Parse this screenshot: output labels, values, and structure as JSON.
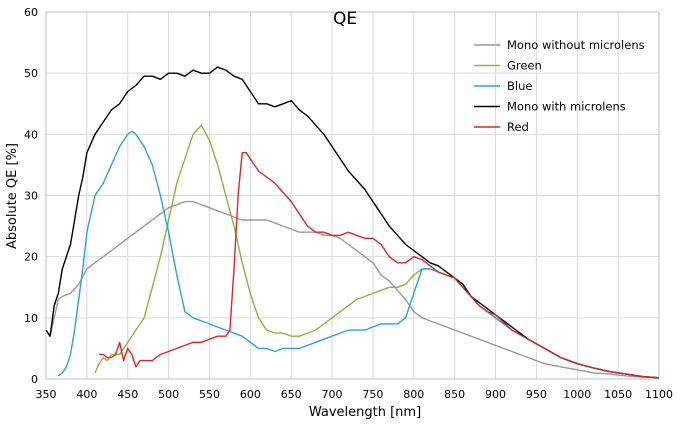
{
  "chart_data": {
    "type": "line",
    "title": "QE",
    "xlabel": "Wavelength [nm]",
    "ylabel": "Absolute QE [%]",
    "xlim": [
      350,
      1100
    ],
    "ylim": [
      0,
      60
    ],
    "xticks": [
      350,
      400,
      450,
      500,
      550,
      600,
      650,
      700,
      750,
      800,
      850,
      900,
      950,
      1000,
      1050,
      1100
    ],
    "yticks": [
      0,
      10,
      20,
      30,
      40,
      50,
      60
    ],
    "grid": true,
    "legend_position": "top-right",
    "legend": [
      "Mono without microlens",
      "Green",
      "Blue",
      "Mono with microlens",
      "Red"
    ],
    "series": [
      {
        "name": "Mono without microlens",
        "color": "#999999",
        "x": [
          350,
          355,
          360,
          365,
          370,
          380,
          390,
          400,
          410,
          420,
          430,
          440,
          450,
          460,
          470,
          480,
          490,
          500,
          510,
          520,
          530,
          540,
          550,
          560,
          570,
          580,
          590,
          600,
          610,
          620,
          630,
          640,
          650,
          660,
          670,
          680,
          690,
          700,
          710,
          720,
          730,
          740,
          750,
          760,
          770,
          780,
          790,
          800,
          810,
          820,
          830,
          840,
          850,
          860,
          870,
          880,
          890,
          900,
          920,
          940,
          960,
          980,
          1000,
          1020,
          1040,
          1060,
          1080,
          1100
        ],
        "y": [
          8,
          7,
          10,
          13,
          13.5,
          14,
          15.5,
          18,
          19,
          20,
          21,
          22,
          23,
          24,
          25,
          26,
          27,
          28,
          28.5,
          29,
          29,
          28.5,
          28,
          27.5,
          27,
          26.5,
          26,
          26,
          26,
          26,
          25.5,
          25,
          24.5,
          24,
          24,
          24,
          23.5,
          23.5,
          23,
          22,
          21,
          20,
          19,
          17,
          16,
          14.5,
          13,
          11,
          10,
          9.5,
          9,
          8.5,
          8,
          7.5,
          7,
          6.5,
          6,
          5.5,
          4.5,
          3.5,
          2.5,
          2,
          1.5,
          1,
          0.8,
          0.5,
          0.3,
          0.2
        ]
      },
      {
        "name": "Green",
        "color": "#8cb33c",
        "x": [
          410,
          415,
          420,
          425,
          430,
          440,
          450,
          460,
          470,
          480,
          490,
          500,
          510,
          520,
          530,
          540,
          550,
          560,
          570,
          580,
          590,
          600,
          610,
          620,
          630,
          640,
          650,
          660,
          670,
          680,
          690,
          700,
          710,
          720,
          730,
          740,
          750,
          760,
          770,
          780,
          790,
          800,
          810,
          820,
          830,
          840,
          850,
          860,
          870,
          880,
          890,
          900,
          920,
          940,
          960,
          980,
          1000,
          1020,
          1040,
          1060,
          1080,
          1100
        ],
        "y": [
          1,
          2.5,
          3.5,
          3,
          4,
          4,
          6,
          8,
          10,
          15,
          20,
          26,
          32,
          36,
          40,
          41.5,
          39,
          35,
          30,
          25,
          19,
          14,
          10,
          8,
          7.5,
          7.5,
          7,
          7,
          7.5,
          8,
          9,
          10,
          11,
          12,
          13,
          13.5,
          14,
          14.5,
          15,
          15,
          15.5,
          17,
          18,
          18,
          17.5,
          17,
          16.5,
          15,
          13.5,
          12,
          11,
          10,
          8,
          6.5,
          5,
          3.5,
          2.5,
          1.8,
          1.2,
          0.8,
          0.4,
          0.2
        ]
      },
      {
        "name": "Blue",
        "color": "#29a3d6",
        "x": [
          365,
          370,
          375,
          380,
          385,
          390,
          395,
          400,
          410,
          420,
          430,
          440,
          450,
          455,
          460,
          470,
          480,
          490,
          500,
          510,
          520,
          530,
          540,
          550,
          560,
          570,
          580,
          590,
          600,
          610,
          620,
          630,
          640,
          650,
          660,
          670,
          680,
          690,
          700,
          710,
          720,
          730,
          740,
          750,
          760,
          770,
          780,
          790,
          800,
          810,
          820,
          830,
          840,
          850,
          860,
          870,
          880,
          890,
          900,
          920,
          940,
          960,
          980,
          1000,
          1020,
          1040,
          1060,
          1080,
          1100
        ],
        "y": [
          0.5,
          1,
          2,
          4,
          8,
          13,
          18,
          24,
          30,
          32,
          35,
          38,
          40,
          40.5,
          40,
          38,
          35,
          30,
          24,
          17,
          11,
          10,
          9.5,
          9,
          8.5,
          8,
          7.5,
          7,
          6,
          5,
          5,
          4.5,
          5,
          5,
          5,
          5.5,
          6,
          6.5,
          7,
          7.5,
          8,
          8,
          8,
          8.5,
          9,
          9,
          9,
          10,
          14,
          18,
          18,
          17.5,
          17,
          16.5,
          15,
          13.5,
          12,
          11,
          10,
          8,
          6.5,
          5,
          3.5,
          2.5,
          1.8,
          1.2,
          0.8,
          0.4,
          0.2
        ]
      },
      {
        "name": "Mono with microlens",
        "color": "#000000",
        "x": [
          350,
          355,
          360,
          365,
          370,
          375,
          380,
          385,
          390,
          395,
          400,
          410,
          420,
          430,
          440,
          450,
          460,
          470,
          480,
          490,
          500,
          510,
          520,
          530,
          540,
          550,
          560,
          570,
          580,
          590,
          600,
          610,
          620,
          630,
          640,
          650,
          660,
          670,
          680,
          690,
          700,
          710,
          720,
          730,
          740,
          750,
          760,
          770,
          780,
          790,
          800,
          810,
          820,
          830,
          840,
          850,
          860,
          870,
          880,
          890,
          900,
          920,
          940,
          960,
          980,
          1000,
          1020,
          1040,
          1060,
          1080,
          1100
        ],
        "y": [
          8,
          7,
          12,
          14,
          18,
          20,
          22,
          26,
          30,
          33,
          37,
          40,
          42,
          44,
          45,
          47,
          48,
          49.5,
          49.5,
          49,
          50,
          50,
          49.5,
          50.5,
          50,
          50,
          51,
          50.5,
          49.5,
          49,
          47,
          45,
          45,
          44.5,
          45,
          45.5,
          44,
          43,
          41.5,
          40,
          38,
          36,
          34,
          32.5,
          31,
          29,
          27,
          25,
          23.5,
          22,
          21,
          20,
          19,
          18.5,
          17.5,
          16.5,
          15.5,
          13.5,
          12.5,
          11.5,
          10.5,
          8.5,
          6.5,
          5,
          3.5,
          2.5,
          1.8,
          1.2,
          0.8,
          0.4,
          0.2
        ]
      },
      {
        "name": "Red",
        "color": "#d42a2a",
        "x": [
          415,
          420,
          425,
          430,
          435,
          440,
          445,
          450,
          455,
          460,
          465,
          470,
          480,
          490,
          500,
          510,
          520,
          530,
          540,
          550,
          560,
          570,
          575,
          580,
          585,
          590,
          595,
          600,
          610,
          620,
          630,
          640,
          650,
          660,
          670,
          680,
          690,
          700,
          710,
          720,
          730,
          740,
          750,
          760,
          770,
          780,
          790,
          800,
          810,
          820,
          830,
          840,
          850,
          860,
          870,
          880,
          890,
          900,
          920,
          940,
          960,
          980,
          1000,
          1020,
          1040,
          1060,
          1080,
          1100
        ],
        "y": [
          4,
          4,
          3.5,
          3.5,
          4,
          6,
          3,
          5,
          4,
          2,
          3,
          3,
          3,
          4,
          4.5,
          5,
          5.5,
          6,
          6,
          6.5,
          7,
          7,
          8,
          18,
          30,
          37,
          37,
          36,
          34,
          33,
          32,
          30.5,
          29,
          27,
          25,
          24,
          24,
          23.5,
          23.5,
          24,
          23.5,
          23,
          23,
          22,
          20,
          19,
          19,
          20,
          19.5,
          18.5,
          17.5,
          17,
          16.5,
          15,
          13.5,
          12,
          11,
          10.5,
          8,
          6.5,
          5,
          3.5,
          2.5,
          1.8,
          1.2,
          0.8,
          0.4,
          0.2
        ]
      }
    ]
  }
}
